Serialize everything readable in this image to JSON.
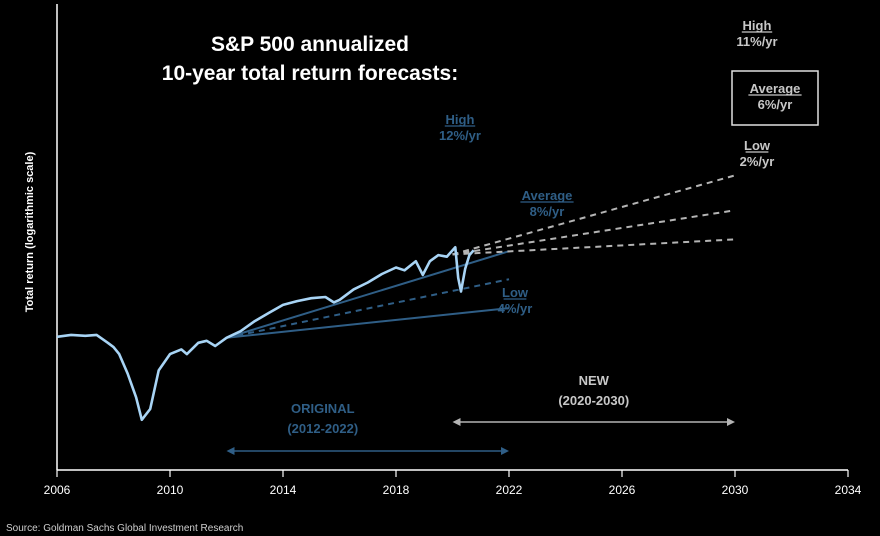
{
  "chart_data": {
    "type": "line",
    "title_lines": [
      "S&P 500 annualized",
      "10-year total return forecasts:"
    ],
    "ylabel": "Total return (logarithmic scale)",
    "y_scale": "log",
    "xlim": [
      2006,
      2034
    ],
    "x_ticks": [
      "2006",
      "2010",
      "2014",
      "2018",
      "2022",
      "2026",
      "2030",
      "2034"
    ],
    "colors": {
      "history": "#a8d4f5",
      "original": "#2f5e86",
      "new": "#b4b4b4",
      "axis": "#ffffff"
    },
    "history": {
      "x": [
        2006.0,
        2006.5,
        2007.0,
        2007.4,
        2007.8,
        2008.0,
        2008.2,
        2008.5,
        2008.8,
        2009.0,
        2009.3,
        2009.6,
        2010.0,
        2010.4,
        2010.6,
        2011.0,
        2011.3,
        2011.6,
        2012.0,
        2012.5,
        2013.0,
        2013.5,
        2014.0,
        2014.5,
        2015.0,
        2015.5,
        2015.8,
        2016.0,
        2016.5,
        2017.0,
        2017.5,
        2018.0,
        2018.3,
        2018.7,
        2018.95,
        2019.2,
        2019.5,
        2019.8,
        2020.1,
        2020.2,
        2020.3,
        2020.45,
        2020.6,
        2020.75
      ],
      "y": [
        0.78,
        0.8,
        0.79,
        0.8,
        0.72,
        0.68,
        0.62,
        0.48,
        0.35,
        0.26,
        0.3,
        0.5,
        0.62,
        0.66,
        0.62,
        0.72,
        0.74,
        0.69,
        0.77,
        0.84,
        0.96,
        1.07,
        1.19,
        1.25,
        1.3,
        1.32,
        1.23,
        1.27,
        1.46,
        1.6,
        1.79,
        1.95,
        1.88,
        2.12,
        1.77,
        2.12,
        2.3,
        2.25,
        2.55,
        1.7,
        1.42,
        1.92,
        2.3,
        2.45
      ]
    },
    "forecasts": [
      {
        "group": "ORIGINAL",
        "label": "High",
        "rate": "12%/yr",
        "start": [
          2012,
          0.77
        ],
        "end": [
          2022,
          2.42
        ]
      },
      {
        "group": "ORIGINAL",
        "label": "Average",
        "rate": "8%/yr",
        "start": [
          2012,
          0.77
        ],
        "end": [
          2022,
          1.67
        ]
      },
      {
        "group": "ORIGINAL",
        "label": "Low",
        "rate": "4%/yr",
        "start": [
          2012,
          0.77
        ],
        "end": [
          2022,
          1.14
        ]
      },
      {
        "group": "NEW",
        "label": "High",
        "rate": "11%/yr",
        "start": [
          2020,
          2.32
        ],
        "end": [
          2030,
          6.6
        ]
      },
      {
        "group": "NEW",
        "label": "Average",
        "rate": "6%/yr",
        "start": [
          2020,
          2.32
        ],
        "end": [
          2030,
          4.16
        ]
      },
      {
        "group": "NEW",
        "label": "Low",
        "rate": "2%/yr",
        "start": [
          2020,
          2.32
        ],
        "end": [
          2030,
          2.83
        ]
      }
    ],
    "periods": [
      {
        "name": "ORIGINAL",
        "range": "(2012-2022)",
        "from": 2012,
        "to": 2022
      },
      {
        "name": "NEW",
        "range": "(2020-2030)",
        "from": 2020,
        "to": 2030
      }
    ]
  },
  "source": "Source: Goldman Sachs Global Investment Research"
}
